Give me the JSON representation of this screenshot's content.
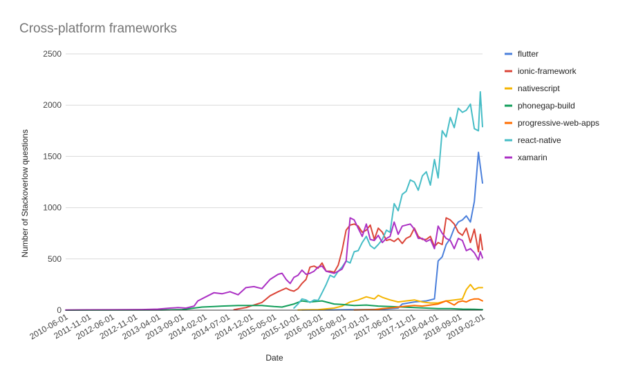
{
  "chart_data": {
    "type": "line",
    "title": "Cross-platform frameworks",
    "xlabel": "Date",
    "ylabel": "Number of Stackoverlow questions",
    "ylim": [
      0,
      2500
    ],
    "yticks": [
      0,
      500,
      1000,
      1500,
      2000,
      2500
    ],
    "xlim": [
      "2010-06-01",
      "2019-02-01"
    ],
    "xticks": [
      "2010-06-01",
      "2011-11-01",
      "2012-06-01",
      "2012-11-01",
      "2013-04-01",
      "2013-09-01",
      "2014-02-01",
      "2014-07-01",
      "2014-12-01",
      "2015-05-01",
      "2015-10-01",
      "2016-03-01",
      "2016-08-01",
      "2017-01-01",
      "2017-06-01",
      "2017-11-01",
      "2018-04-01",
      "2018-09-01",
      "2019-02-01"
    ],
    "grid": true,
    "legend": "right",
    "series": [
      {
        "name": "flutter",
        "color": "#4a7fdb",
        "points": [
          [
            "2015-05-01",
            2
          ],
          [
            "2016-01-01",
            3
          ],
          [
            "2017-01-01",
            8
          ],
          [
            "2017-05-01",
            20
          ],
          [
            "2017-06-01",
            60
          ],
          [
            "2017-09-01",
            80
          ],
          [
            "2017-12-01",
            90
          ],
          [
            "2018-02-01",
            110
          ],
          [
            "2018-03-01",
            480
          ],
          [
            "2018-04-01",
            520
          ],
          [
            "2018-05-01",
            640
          ],
          [
            "2018-06-01",
            700
          ],
          [
            "2018-07-01",
            800
          ],
          [
            "2018-08-01",
            860
          ],
          [
            "2018-09-01",
            880
          ],
          [
            "2018-10-01",
            920
          ],
          [
            "2018-11-01",
            860
          ],
          [
            "2018-12-01",
            1060
          ],
          [
            "2019-01-01",
            1540
          ],
          [
            "2019-02-01",
            1240
          ]
        ]
      },
      {
        "name": "ionic-framework",
        "color": "#db4437",
        "points": [
          [
            "2013-12-01",
            5
          ],
          [
            "2014-01-01",
            12
          ],
          [
            "2014-03-01",
            25
          ],
          [
            "2014-05-01",
            50
          ],
          [
            "2014-07-01",
            75
          ],
          [
            "2014-09-01",
            140
          ],
          [
            "2014-11-01",
            180
          ],
          [
            "2015-01-01",
            215
          ],
          [
            "2015-02-01",
            195
          ],
          [
            "2015-03-01",
            185
          ],
          [
            "2015-04-01",
            210
          ],
          [
            "2015-05-01",
            260
          ],
          [
            "2015-06-01",
            300
          ],
          [
            "2015-07-01",
            420
          ],
          [
            "2015-08-01",
            430
          ],
          [
            "2015-09-01",
            410
          ],
          [
            "2015-10-01",
            460
          ],
          [
            "2015-11-01",
            380
          ],
          [
            "2015-12-01",
            380
          ],
          [
            "2016-01-01",
            370
          ],
          [
            "2016-02-01",
            440
          ],
          [
            "2016-03-01",
            580
          ],
          [
            "2016-04-01",
            780
          ],
          [
            "2016-05-01",
            830
          ],
          [
            "2016-06-01",
            840
          ],
          [
            "2016-07-01",
            820
          ],
          [
            "2016-08-01",
            760
          ],
          [
            "2016-09-01",
            780
          ],
          [
            "2016-10-01",
            830
          ],
          [
            "2016-11-01",
            690
          ],
          [
            "2016-12-01",
            800
          ],
          [
            "2017-01-01",
            760
          ],
          [
            "2017-02-01",
            680
          ],
          [
            "2017-03-01",
            690
          ],
          [
            "2017-04-01",
            670
          ],
          [
            "2017-05-01",
            700
          ],
          [
            "2017-06-01",
            650
          ],
          [
            "2017-07-01",
            700
          ],
          [
            "2017-08-01",
            720
          ],
          [
            "2017-09-01",
            800
          ],
          [
            "2017-10-01",
            720
          ],
          [
            "2017-11-01",
            690
          ],
          [
            "2017-12-01",
            690
          ],
          [
            "2018-01-01",
            720
          ],
          [
            "2018-02-01",
            620
          ],
          [
            "2018-03-01",
            660
          ],
          [
            "2018-04-01",
            640
          ],
          [
            "2018-05-01",
            900
          ],
          [
            "2018-06-01",
            880
          ],
          [
            "2018-07-01",
            840
          ],
          [
            "2018-08-01",
            760
          ],
          [
            "2018-09-01",
            730
          ],
          [
            "2018-10-01",
            800
          ],
          [
            "2018-11-01",
            660
          ],
          [
            "2018-12-01",
            790
          ],
          [
            "2019-01-01",
            570
          ],
          [
            "2019-01-15",
            740
          ],
          [
            "2019-02-01",
            590
          ]
        ]
      },
      {
        "name": "nativescript",
        "color": "#f4b400",
        "points": [
          [
            "2015-04-01",
            2
          ],
          [
            "2015-09-01",
            5
          ],
          [
            "2016-01-01",
            20
          ],
          [
            "2016-03-01",
            40
          ],
          [
            "2016-05-01",
            80
          ],
          [
            "2016-07-01",
            100
          ],
          [
            "2016-09-01",
            130
          ],
          [
            "2016-11-01",
            110
          ],
          [
            "2016-12-01",
            145
          ],
          [
            "2017-01-01",
            125
          ],
          [
            "2017-03-01",
            100
          ],
          [
            "2017-05-01",
            80
          ],
          [
            "2017-07-01",
            90
          ],
          [
            "2017-09-01",
            100
          ],
          [
            "2017-11-01",
            80
          ],
          [
            "2018-01-01",
            70
          ],
          [
            "2018-03-01",
            70
          ],
          [
            "2018-05-01",
            90
          ],
          [
            "2018-07-01",
            100
          ],
          [
            "2018-09-01",
            110
          ],
          [
            "2018-10-01",
            200
          ],
          [
            "2018-11-01",
            250
          ],
          [
            "2018-12-01",
            200
          ],
          [
            "2019-01-01",
            220
          ],
          [
            "2019-02-01",
            220
          ]
        ]
      },
      {
        "name": "phonegap-build",
        "color": "#0f9d58",
        "points": [
          [
            "2010-06-01",
            0
          ],
          [
            "2012-06-01",
            2
          ],
          [
            "2012-11-01",
            5
          ],
          [
            "2013-01-01",
            15
          ],
          [
            "2013-04-01",
            30
          ],
          [
            "2013-07-01",
            35
          ],
          [
            "2013-09-01",
            40
          ],
          [
            "2014-01-01",
            45
          ],
          [
            "2014-04-01",
            45
          ],
          [
            "2014-07-01",
            45
          ],
          [
            "2014-10-01",
            35
          ],
          [
            "2014-12-01",
            30
          ],
          [
            "2015-03-01",
            60
          ],
          [
            "2015-05-01",
            90
          ],
          [
            "2015-07-01",
            80
          ],
          [
            "2015-10-01",
            90
          ],
          [
            "2016-01-01",
            60
          ],
          [
            "2016-03-01",
            55
          ],
          [
            "2016-06-01",
            45
          ],
          [
            "2016-09-01",
            50
          ],
          [
            "2016-12-01",
            40
          ],
          [
            "2017-03-01",
            35
          ],
          [
            "2017-06-01",
            30
          ],
          [
            "2017-09-01",
            25
          ],
          [
            "2017-12-01",
            20
          ],
          [
            "2018-03-01",
            15
          ],
          [
            "2018-06-01",
            15
          ],
          [
            "2018-09-01",
            10
          ],
          [
            "2018-12-01",
            8
          ],
          [
            "2019-02-01",
            5
          ]
        ]
      },
      {
        "name": "progressive-web-apps",
        "color": "#ff6d00",
        "points": [
          [
            "2016-06-01",
            2
          ],
          [
            "2016-11-01",
            5
          ],
          [
            "2017-01-01",
            15
          ],
          [
            "2017-04-01",
            25
          ],
          [
            "2017-06-01",
            35
          ],
          [
            "2017-09-01",
            45
          ],
          [
            "2017-11-01",
            40
          ],
          [
            "2018-01-01",
            50
          ],
          [
            "2018-03-01",
            60
          ],
          [
            "2018-05-01",
            90
          ],
          [
            "2018-06-01",
            70
          ],
          [
            "2018-07-01",
            50
          ],
          [
            "2018-08-01",
            80
          ],
          [
            "2018-09-01",
            90
          ],
          [
            "2018-10-01",
            80
          ],
          [
            "2018-11-01",
            100
          ],
          [
            "2018-12-01",
            110
          ],
          [
            "2019-01-01",
            110
          ],
          [
            "2019-02-01",
            90
          ]
        ]
      },
      {
        "name": "react-native",
        "color": "#46bdc6",
        "points": [
          [
            "2015-03-01",
            20
          ],
          [
            "2015-04-01",
            60
          ],
          [
            "2015-05-01",
            110
          ],
          [
            "2015-06-01",
            100
          ],
          [
            "2015-07-01",
            75
          ],
          [
            "2015-08-01",
            100
          ],
          [
            "2015-09-01",
            95
          ],
          [
            "2015-10-01",
            170
          ],
          [
            "2015-11-01",
            250
          ],
          [
            "2015-12-01",
            340
          ],
          [
            "2016-01-01",
            320
          ],
          [
            "2016-02-01",
            380
          ],
          [
            "2016-03-01",
            420
          ],
          [
            "2016-04-01",
            480
          ],
          [
            "2016-05-01",
            460
          ],
          [
            "2016-06-01",
            570
          ],
          [
            "2016-07-01",
            580
          ],
          [
            "2016-08-01",
            660
          ],
          [
            "2016-09-01",
            720
          ],
          [
            "2016-10-01",
            630
          ],
          [
            "2016-11-01",
            600
          ],
          [
            "2016-12-01",
            640
          ],
          [
            "2017-01-01",
            690
          ],
          [
            "2017-02-01",
            780
          ],
          [
            "2017-03-01",
            760
          ],
          [
            "2017-04-01",
            1040
          ],
          [
            "2017-05-01",
            970
          ],
          [
            "2017-06-01",
            1130
          ],
          [
            "2017-07-01",
            1160
          ],
          [
            "2017-08-01",
            1270
          ],
          [
            "2017-09-01",
            1250
          ],
          [
            "2017-10-01",
            1170
          ],
          [
            "2017-11-01",
            1310
          ],
          [
            "2017-12-01",
            1350
          ],
          [
            "2018-01-01",
            1220
          ],
          [
            "2018-02-01",
            1470
          ],
          [
            "2018-03-01",
            1290
          ],
          [
            "2018-04-01",
            1750
          ],
          [
            "2018-05-01",
            1690
          ],
          [
            "2018-06-01",
            1880
          ],
          [
            "2018-07-01",
            1780
          ],
          [
            "2018-08-01",
            1970
          ],
          [
            "2018-09-01",
            1930
          ],
          [
            "2018-10-01",
            1950
          ],
          [
            "2018-11-01",
            2010
          ],
          [
            "2018-12-01",
            1770
          ],
          [
            "2019-01-01",
            1750
          ],
          [
            "2019-01-15",
            2130
          ],
          [
            "2019-02-01",
            1790
          ]
        ]
      },
      {
        "name": "xamarin",
        "color": "#ab30c4",
        "points": [
          [
            "2010-06-01",
            2
          ],
          [
            "2011-06-01",
            4
          ],
          [
            "2012-01-01",
            6
          ],
          [
            "2012-05-01",
            10
          ],
          [
            "2012-08-01",
            20
          ],
          [
            "2012-10-01",
            25
          ],
          [
            "2012-12-01",
            20
          ],
          [
            "2013-02-01",
            40
          ],
          [
            "2013-03-01",
            90
          ],
          [
            "2013-05-01",
            130
          ],
          [
            "2013-07-01",
            170
          ],
          [
            "2013-09-01",
            160
          ],
          [
            "2013-11-01",
            180
          ],
          [
            "2014-01-01",
            150
          ],
          [
            "2014-03-01",
            220
          ],
          [
            "2014-05-01",
            230
          ],
          [
            "2014-07-01",
            210
          ],
          [
            "2014-09-01",
            300
          ],
          [
            "2014-11-01",
            350
          ],
          [
            "2014-12-01",
            360
          ],
          [
            "2015-01-01",
            300
          ],
          [
            "2015-02-01",
            260
          ],
          [
            "2015-03-01",
            320
          ],
          [
            "2015-04-01",
            340
          ],
          [
            "2015-05-01",
            390
          ],
          [
            "2015-06-01",
            350
          ],
          [
            "2015-07-01",
            360
          ],
          [
            "2015-08-01",
            380
          ],
          [
            "2015-09-01",
            420
          ],
          [
            "2015-10-01",
            430
          ],
          [
            "2015-11-01",
            380
          ],
          [
            "2015-12-01",
            370
          ],
          [
            "2016-01-01",
            360
          ],
          [
            "2016-02-01",
            380
          ],
          [
            "2016-03-01",
            400
          ],
          [
            "2016-04-01",
            480
          ],
          [
            "2016-05-01",
            900
          ],
          [
            "2016-06-01",
            880
          ],
          [
            "2016-07-01",
            800
          ],
          [
            "2016-08-01",
            720
          ],
          [
            "2016-09-01",
            840
          ],
          [
            "2016-10-01",
            690
          ],
          [
            "2016-11-01",
            680
          ],
          [
            "2016-12-01",
            730
          ],
          [
            "2017-01-01",
            660
          ],
          [
            "2017-02-01",
            700
          ],
          [
            "2017-03-01",
            720
          ],
          [
            "2017-04-01",
            860
          ],
          [
            "2017-05-01",
            740
          ],
          [
            "2017-06-01",
            820
          ],
          [
            "2017-07-01",
            830
          ],
          [
            "2017-08-01",
            840
          ],
          [
            "2017-09-01",
            790
          ],
          [
            "2017-10-01",
            700
          ],
          [
            "2017-11-01",
            700
          ],
          [
            "2017-12-01",
            670
          ],
          [
            "2018-01-01",
            690
          ],
          [
            "2018-02-01",
            600
          ],
          [
            "2018-03-01",
            820
          ],
          [
            "2018-04-01",
            750
          ],
          [
            "2018-05-01",
            700
          ],
          [
            "2018-06-01",
            680
          ],
          [
            "2018-07-01",
            600
          ],
          [
            "2018-08-01",
            700
          ],
          [
            "2018-09-01",
            680
          ],
          [
            "2018-10-01",
            580
          ],
          [
            "2018-11-01",
            600
          ],
          [
            "2018-12-01",
            560
          ],
          [
            "2019-01-01",
            490
          ],
          [
            "2019-01-15",
            570
          ],
          [
            "2019-02-01",
            510
          ]
        ]
      }
    ]
  }
}
